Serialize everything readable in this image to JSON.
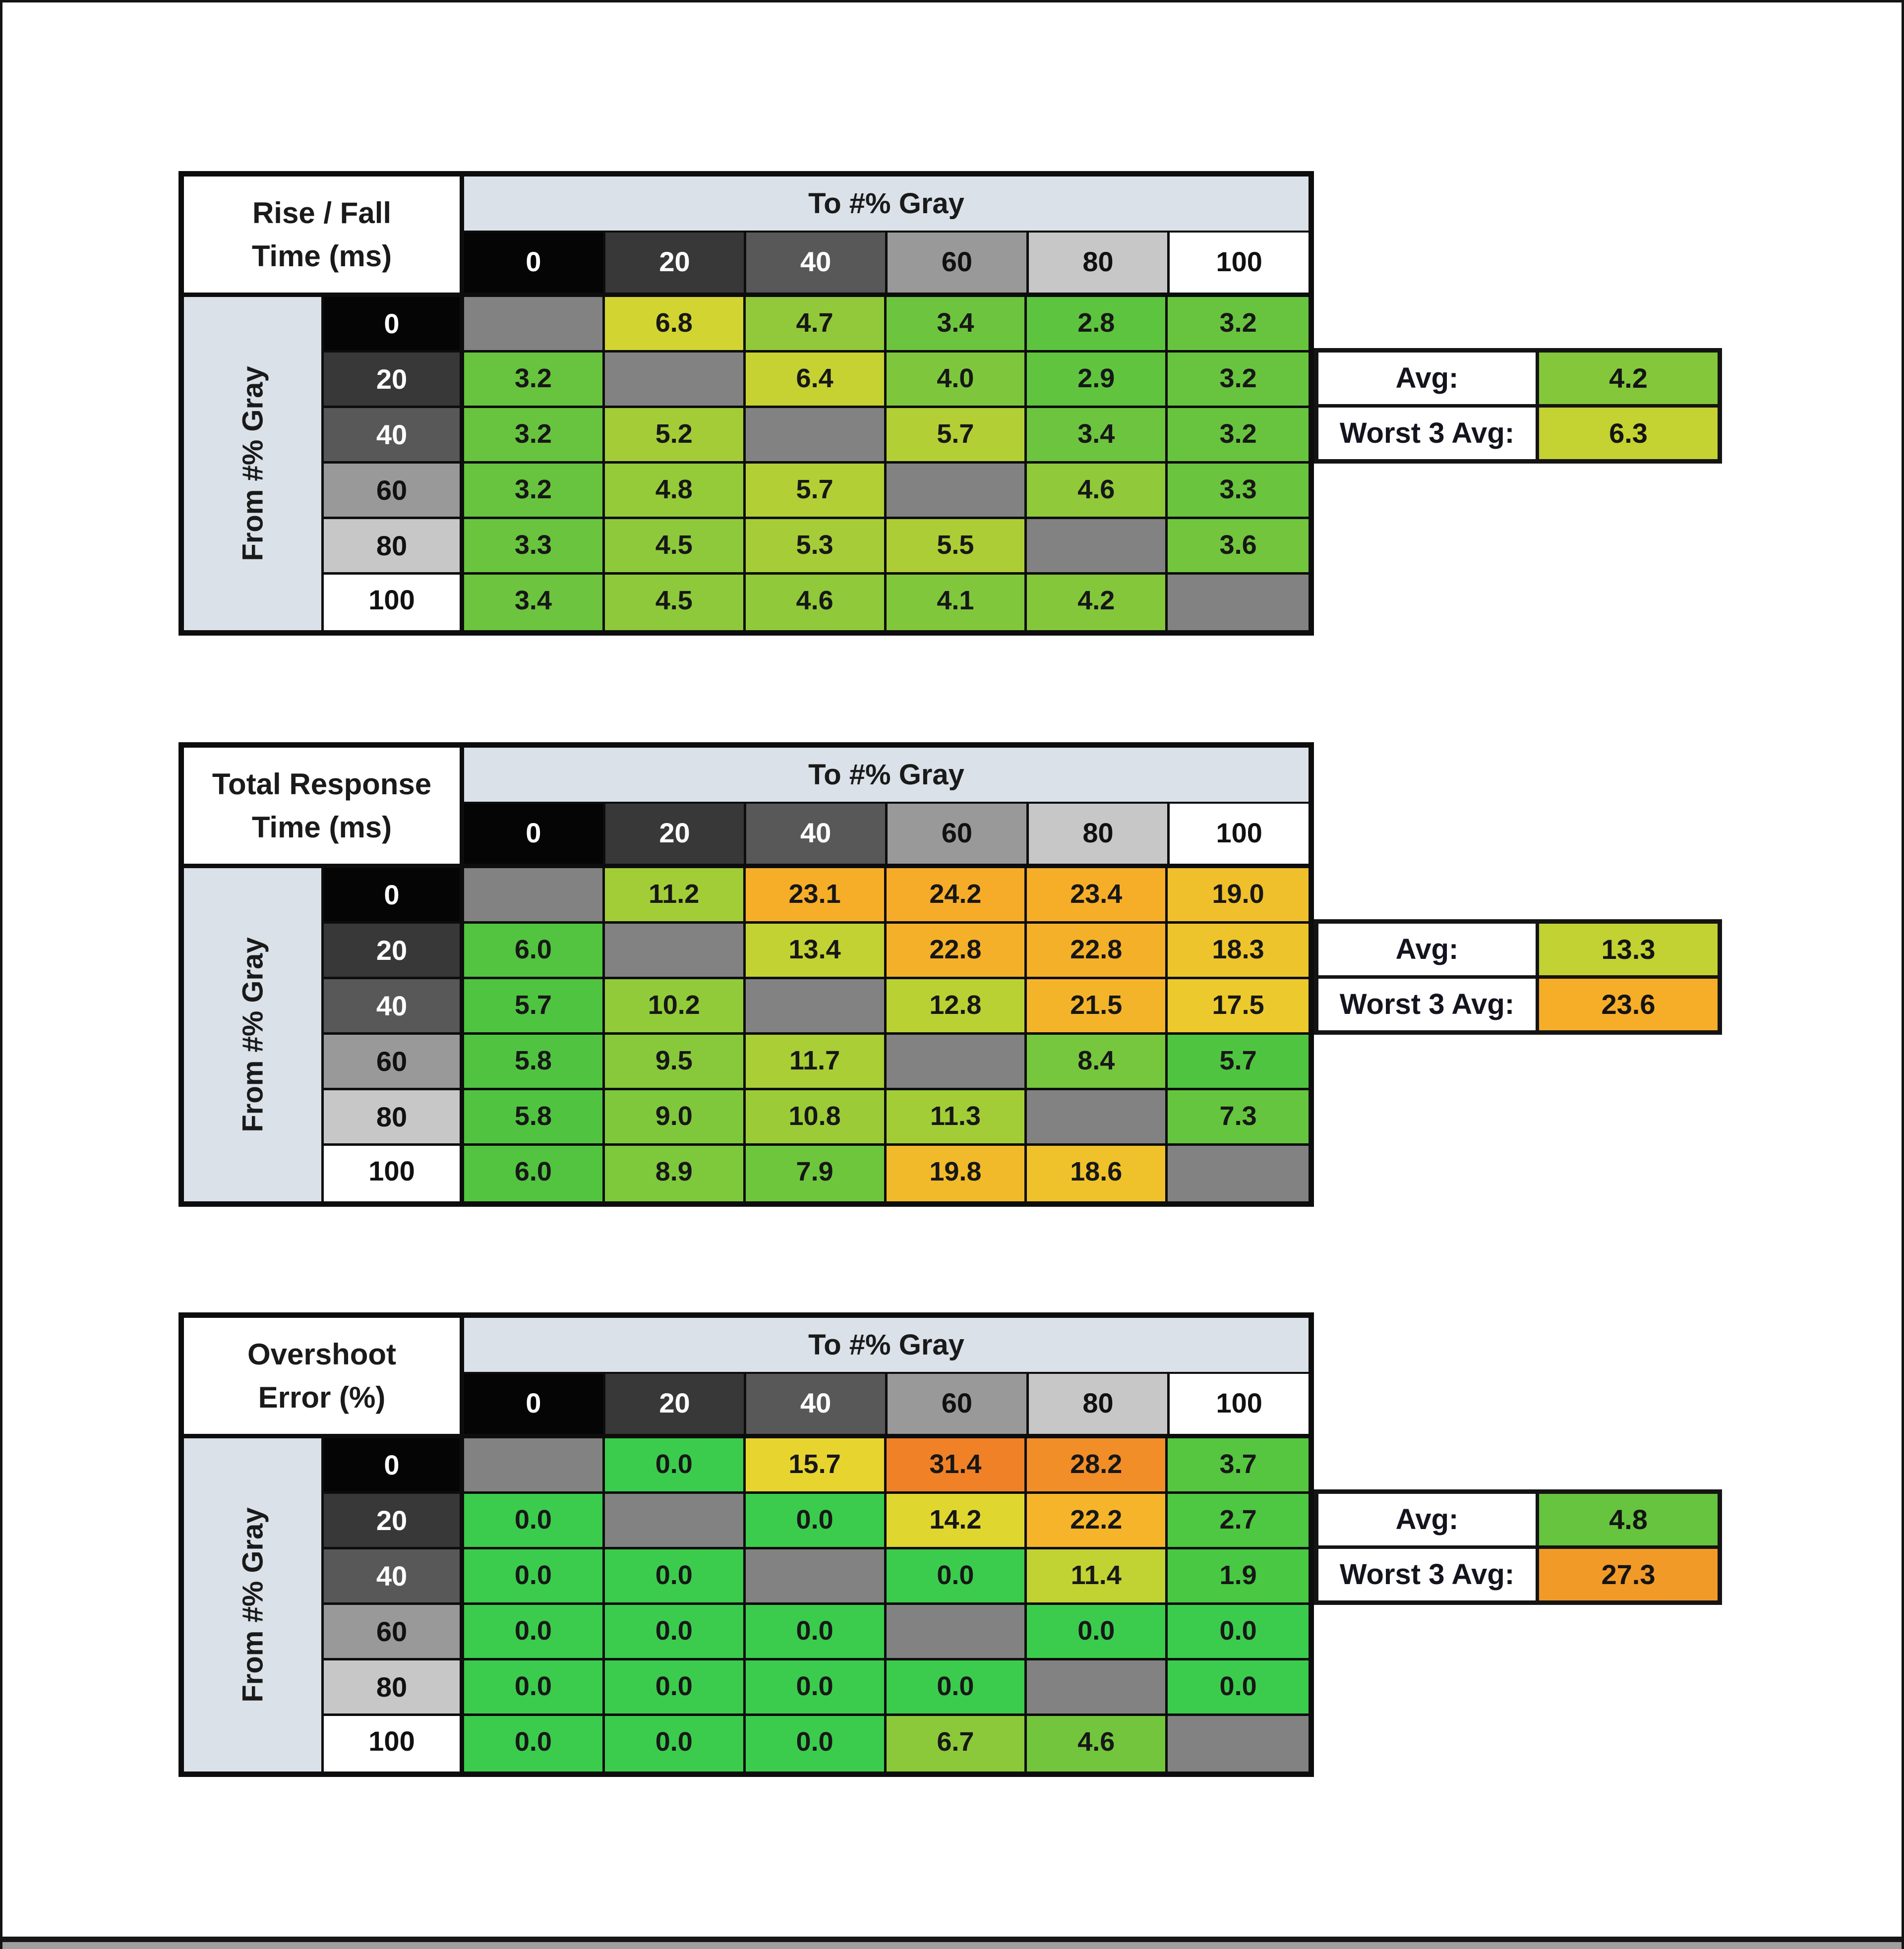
{
  "palette": {
    "band": "#dae1e8",
    "diagonal": "#828282",
    "grid_line": "#0d0d0d",
    "cell_text": "#171717",
    "frame_border": "#141414",
    "bottom_bar": "#9f9f9f",
    "gray_steps": [
      {
        "label": "0",
        "bg": "#050505",
        "fg": "#ffffff"
      },
      {
        "label": "20",
        "bg": "#383838",
        "fg": "#ffffff"
      },
      {
        "label": "40",
        "bg": "#585858",
        "fg": "#ffffff"
      },
      {
        "label": "60",
        "bg": "#999999",
        "fg": "#111111"
      },
      {
        "label": "80",
        "bg": "#c7c7c7",
        "fg": "#111111"
      },
      {
        "label": "100",
        "bg": "#ffffff",
        "fg": "#111111"
      }
    ]
  },
  "tables": [
    {
      "id": "rise-fall",
      "title_line1": "Rise / Fall",
      "title_line2": "Time (ms)",
      "to_header": "To #% Gray",
      "from_header": "From #% Gray",
      "col_labels": [
        "0",
        "20",
        "40",
        "60",
        "80",
        "100"
      ],
      "row_labels": [
        "0",
        "20",
        "40",
        "60",
        "80",
        "100"
      ],
      "cells": [
        [
          null,
          {
            "v": "6.8",
            "c": "#d2d431"
          },
          {
            "v": "4.7",
            "c": "#92c93a"
          },
          {
            "v": "3.4",
            "c": "#6dc43e"
          },
          {
            "v": "2.8",
            "c": "#5dc43f"
          },
          {
            "v": "3.2",
            "c": "#68c43e"
          }
        ],
        [
          {
            "v": "3.2",
            "c": "#68c43e"
          },
          null,
          {
            "v": "6.4",
            "c": "#c6d232"
          },
          {
            "v": "4.0",
            "c": "#7ec73c"
          },
          {
            "v": "2.9",
            "c": "#60c43f"
          },
          {
            "v": "3.2",
            "c": "#68c43e"
          }
        ],
        [
          {
            "v": "3.2",
            "c": "#68c43e"
          },
          {
            "v": "5.2",
            "c": "#a3cc37"
          },
          null,
          {
            "v": "5.7",
            "c": "#b2cf35"
          },
          {
            "v": "3.4",
            "c": "#6dc43e"
          },
          {
            "v": "3.2",
            "c": "#68c43e"
          }
        ],
        [
          {
            "v": "3.2",
            "c": "#68c43e"
          },
          {
            "v": "4.8",
            "c": "#95ca39"
          },
          {
            "v": "5.7",
            "c": "#b2cf35"
          },
          null,
          {
            "v": "4.6",
            "c": "#90c93a"
          },
          {
            "v": "3.3",
            "c": "#6ac43e"
          }
        ],
        [
          {
            "v": "3.3",
            "c": "#6ac43e"
          },
          {
            "v": "4.5",
            "c": "#8dc93b"
          },
          {
            "v": "5.3",
            "c": "#a6cc37"
          },
          {
            "v": "5.5",
            "c": "#accd36"
          },
          null,
          {
            "v": "3.6",
            "c": "#72c53d"
          }
        ],
        [
          {
            "v": "3.4",
            "c": "#6dc43e"
          },
          {
            "v": "4.5",
            "c": "#8dc93b"
          },
          {
            "v": "4.6",
            "c": "#90c93a"
          },
          {
            "v": "4.1",
            "c": "#81c73c"
          },
          {
            "v": "4.2",
            "c": "#84c73b"
          },
          null
        ]
      ],
      "avg_label": "Avg:",
      "avg_value": "4.2",
      "avg_color": "#84c73b",
      "worst_label": "Worst 3 Avg:",
      "worst_value": "6.3",
      "worst_color": "#c4d232"
    },
    {
      "id": "total-response",
      "title_line1": "Total Response",
      "title_line2": "Time (ms)",
      "to_header": "To #% Gray",
      "from_header": "From #% Gray",
      "col_labels": [
        "0",
        "20",
        "40",
        "60",
        "80",
        "100"
      ],
      "row_labels": [
        "0",
        "20",
        "40",
        "60",
        "80",
        "100"
      ],
      "cells": [
        [
          null,
          {
            "v": "11.2",
            "c": "#a2cd37"
          },
          {
            "v": "23.1",
            "c": "#f6ae29"
          },
          {
            "v": "24.2",
            "c": "#f7ac29"
          },
          {
            "v": "23.4",
            "c": "#f6ae29"
          },
          {
            "v": "19.0",
            "c": "#f0bf2c"
          }
        ],
        [
          {
            "v": "6.0",
            "c": "#52c440"
          },
          null,
          {
            "v": "13.4",
            "c": "#c3d233"
          },
          {
            "v": "22.8",
            "c": "#f5b02a"
          },
          {
            "v": "22.8",
            "c": "#f5b02a"
          },
          {
            "v": "18.3",
            "c": "#eec42c"
          }
        ],
        [
          {
            "v": "5.7",
            "c": "#4fc441"
          },
          {
            "v": "10.2",
            "c": "#92cb39"
          },
          null,
          {
            "v": "12.8",
            "c": "#bad134"
          },
          {
            "v": "21.5",
            "c": "#f4b42a"
          },
          {
            "v": "17.5",
            "c": "#ecc92d"
          }
        ],
        [
          {
            "v": "5.8",
            "c": "#50c441"
          },
          {
            "v": "9.5",
            "c": "#87c93b"
          },
          {
            "v": "11.7",
            "c": "#a9ce36"
          },
          null,
          {
            "v": "8.4",
            "c": "#76c73d"
          },
          {
            "v": "5.7",
            "c": "#4fc441"
          }
        ],
        [
          {
            "v": "5.8",
            "c": "#50c441"
          },
          {
            "v": "9.0",
            "c": "#7fc83c"
          },
          {
            "v": "10.8",
            "c": "#9bcc38"
          },
          {
            "v": "11.3",
            "c": "#a2cd37"
          },
          null,
          {
            "v": "7.3",
            "c": "#65c53e"
          }
        ],
        [
          {
            "v": "6.0",
            "c": "#52c440"
          },
          {
            "v": "8.9",
            "c": "#7ec83c"
          },
          {
            "v": "7.9",
            "c": "#6ec63d"
          },
          {
            "v": "19.8",
            "c": "#f1ba2b"
          },
          {
            "v": "18.6",
            "c": "#efc22c"
          },
          null
        ]
      ],
      "avg_label": "Avg:",
      "avg_value": "13.3",
      "avg_color": "#c2d233",
      "worst_label": "Worst 3 Avg:",
      "worst_value": "23.6",
      "worst_color": "#f6ae29"
    },
    {
      "id": "overshoot",
      "title_line1": "Overshoot",
      "title_line2": "Error (%)",
      "to_header": "To #% Gray",
      "from_header": "From #% Gray",
      "col_labels": [
        "0",
        "20",
        "40",
        "60",
        "80",
        "100"
      ],
      "row_labels": [
        "0",
        "20",
        "40",
        "60",
        "80",
        "100"
      ],
      "cells": [
        [
          null,
          {
            "v": "0.0",
            "c": "#3bcc4d"
          },
          {
            "v": "15.7",
            "c": "#e7d42f"
          },
          {
            "v": "31.4",
            "c": "#f08127"
          },
          {
            "v": "28.2",
            "c": "#f28e28"
          },
          {
            "v": "3.7",
            "c": "#56c640"
          }
        ],
        [
          {
            "v": "0.0",
            "c": "#3bcc4d"
          },
          null,
          {
            "v": "0.0",
            "c": "#3bcc4d"
          },
          {
            "v": "14.2",
            "c": "#e0d630"
          },
          {
            "v": "22.2",
            "c": "#f6b42a"
          },
          {
            "v": "2.7",
            "c": "#4ec742"
          }
        ],
        [
          {
            "v": "0.0",
            "c": "#3bcc4d"
          },
          {
            "v": "0.0",
            "c": "#3bcc4d"
          },
          null,
          {
            "v": "0.0",
            "c": "#3bcc4d"
          },
          {
            "v": "11.4",
            "c": "#c1d233"
          },
          {
            "v": "1.9",
            "c": "#48c843"
          }
        ],
        [
          {
            "v": "0.0",
            "c": "#3bcc4d"
          },
          {
            "v": "0.0",
            "c": "#3bcc4d"
          },
          {
            "v": "0.0",
            "c": "#3bcc4d"
          },
          null,
          {
            "v": "0.0",
            "c": "#3bcc4d"
          },
          {
            "v": "0.0",
            "c": "#3bcc4d"
          }
        ],
        [
          {
            "v": "0.0",
            "c": "#3bcc4d"
          },
          {
            "v": "0.0",
            "c": "#3bcc4d"
          },
          {
            "v": "0.0",
            "c": "#3bcc4d"
          },
          {
            "v": "0.0",
            "c": "#3bcc4d"
          },
          null,
          {
            "v": "0.0",
            "c": "#3bcc4d"
          }
        ],
        [
          {
            "v": "0.0",
            "c": "#3bcc4d"
          },
          {
            "v": "0.0",
            "c": "#3bcc4d"
          },
          {
            "v": "0.0",
            "c": "#3bcc4d"
          },
          {
            "v": "6.7",
            "c": "#8bc93a"
          },
          {
            "v": "4.6",
            "c": "#72c53d"
          },
          null
        ]
      ],
      "avg_label": "Avg:",
      "avg_value": "4.8",
      "avg_color": "#66c43e",
      "worst_label": "Worst 3 Avg:",
      "worst_value": "27.3",
      "worst_color": "#f29a28"
    }
  ],
  "chart_data": [
    {
      "type": "heatmap",
      "title": "Rise / Fall Time (ms)",
      "xlabel": "To #% Gray",
      "ylabel": "From #% Gray",
      "x_categories": [
        0,
        20,
        40,
        60,
        80,
        100
      ],
      "y_categories": [
        0,
        20,
        40,
        60,
        80,
        100
      ],
      "values": [
        [
          null,
          6.8,
          4.7,
          3.4,
          2.8,
          3.2
        ],
        [
          3.2,
          null,
          6.4,
          4.0,
          2.9,
          3.2
        ],
        [
          3.2,
          5.2,
          null,
          5.7,
          3.4,
          3.2
        ],
        [
          3.2,
          4.8,
          5.7,
          null,
          4.6,
          3.3
        ],
        [
          3.3,
          4.5,
          5.3,
          5.5,
          null,
          3.6
        ],
        [
          3.4,
          4.5,
          4.6,
          4.1,
          4.2,
          null
        ]
      ],
      "avg": 4.2,
      "worst_3_avg": 6.3,
      "color_scale": "green(low) to yellow(high)"
    },
    {
      "type": "heatmap",
      "title": "Total Response Time (ms)",
      "xlabel": "To #% Gray",
      "ylabel": "From #% Gray",
      "x_categories": [
        0,
        20,
        40,
        60,
        80,
        100
      ],
      "y_categories": [
        0,
        20,
        40,
        60,
        80,
        100
      ],
      "values": [
        [
          null,
          11.2,
          23.1,
          24.2,
          23.4,
          19.0
        ],
        [
          6.0,
          null,
          13.4,
          22.8,
          22.8,
          18.3
        ],
        [
          5.7,
          10.2,
          null,
          12.8,
          21.5,
          17.5
        ],
        [
          5.8,
          9.5,
          11.7,
          null,
          8.4,
          5.7
        ],
        [
          5.8,
          9.0,
          10.8,
          11.3,
          null,
          7.3
        ],
        [
          6.0,
          8.9,
          7.9,
          19.8,
          18.6,
          null
        ]
      ],
      "avg": 13.3,
      "worst_3_avg": 23.6,
      "color_scale": "green(low) to orange(high)"
    },
    {
      "type": "heatmap",
      "title": "Overshoot Error (%)",
      "xlabel": "To #% Gray",
      "ylabel": "From #% Gray",
      "x_categories": [
        0,
        20,
        40,
        60,
        80,
        100
      ],
      "y_categories": [
        0,
        20,
        40,
        60,
        80,
        100
      ],
      "values": [
        [
          null,
          0.0,
          15.7,
          31.4,
          28.2,
          3.7
        ],
        [
          0.0,
          null,
          0.0,
          14.2,
          22.2,
          2.7
        ],
        [
          0.0,
          0.0,
          null,
          0.0,
          11.4,
          1.9
        ],
        [
          0.0,
          0.0,
          0.0,
          null,
          0.0,
          0.0
        ],
        [
          0.0,
          0.0,
          0.0,
          0.0,
          null,
          0.0
        ],
        [
          0.0,
          0.0,
          0.0,
          6.7,
          4.6,
          null
        ]
      ],
      "avg": 4.8,
      "worst_3_avg": 27.3,
      "color_scale": "green(low) to orange(high)"
    }
  ]
}
